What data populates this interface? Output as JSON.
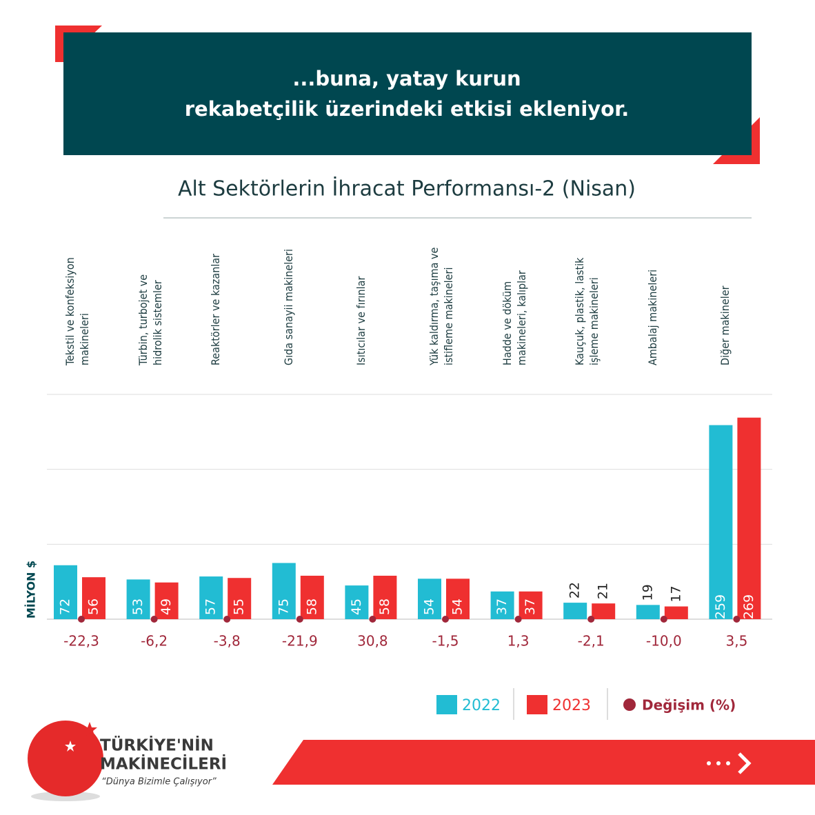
{
  "header": {
    "title_lines": [
      "...buna, yatay kurun",
      "rekabetçilik üzerindeki etkisi ekleniyor."
    ]
  },
  "chart_data": {
    "type": "bar",
    "title": "Alt Sektörlerin İhracat Performansı-2 (Nisan)",
    "y_label": "MİLYON $",
    "categories": [
      "Tekstil ve konfeksiyon\nmakineleri",
      "Türbin, turbojet ve\nhidrolik sistemler",
      "Reaktörler ve kazanlar",
      "Gıda sanayii makineleri",
      "Isıtıcılar ve fırınlar",
      "Yük kaldırma, taşıma ve\nistifleme makineleri",
      "Hadde ve döküm\nmakineleri, kalıplar",
      "Kauçuk, plastik, lastik\nişleme makineleri",
      "Ambalaj makineleri",
      "Diğer makineler"
    ],
    "series": [
      {
        "name": "2022",
        "color": "#22bcd3",
        "values": [
          72,
          53,
          57,
          75,
          45,
          54,
          37,
          22,
          19,
          259
        ]
      },
      {
        "name": "2023",
        "color": "#ef3030",
        "values": [
          56,
          49,
          55,
          58,
          58,
          54,
          37,
          21,
          17,
          269
        ]
      }
    ],
    "change": {
      "name": "Değişim (%)",
      "color": "#a0273a",
      "values": [
        -22.3,
        -6.2,
        -3.8,
        -21.9,
        30.8,
        -1.5,
        1.3,
        -2.1,
        -10.0,
        3.5
      ],
      "value_labels": [
        "-22,3",
        "-6,2",
        "-3,8",
        "-21,9",
        "30,8",
        "-1,5",
        "1,3",
        "-2,1",
        "-10,0",
        "3,5"
      ]
    },
    "ylim": [
      0,
      300
    ],
    "yticks": [
      0,
      100,
      200,
      300
    ],
    "grid": true
  },
  "footer": {
    "brand_lines": [
      "TÜRKİYE'NİN",
      "MAKİNECİLERİ"
    ],
    "slogan": "“Dünya Bizimle Çalışıyor”"
  }
}
